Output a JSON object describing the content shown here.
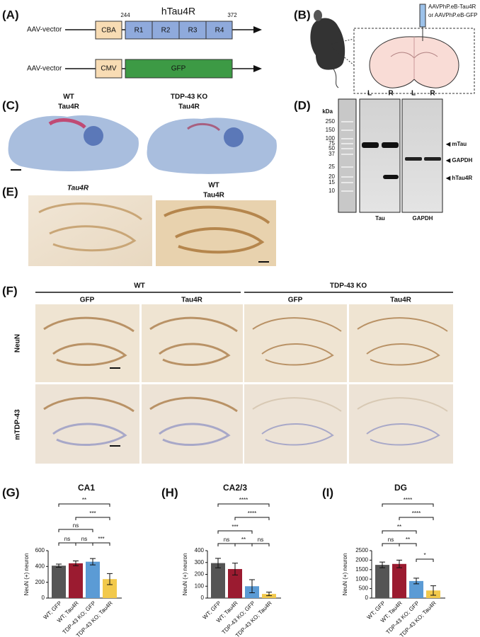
{
  "panel_a": {
    "label": "(A)",
    "constructs": [
      {
        "vector": "AAV-vector",
        "promoter": "CBA",
        "start": 244,
        "name": "hTau4R",
        "end": 372,
        "repeats": [
          "R1",
          "R2",
          "R3",
          "R4"
        ]
      },
      {
        "vector": "AAV-vector",
        "promoter": "CMV",
        "insert": "GFP"
      }
    ]
  },
  "panel_b": {
    "label": "(B)",
    "injection": [
      "AAVPhP.eB-Tau4R",
      "or AAVPhP.eB-GFP"
    ]
  },
  "panel_c": {
    "label": "(C)",
    "images": [
      {
        "title": [
          "WT",
          "Tau4R"
        ]
      },
      {
        "title": [
          "TDP-43 KO",
          "Tau4R"
        ]
      }
    ]
  },
  "panel_d": {
    "label": "(D)",
    "unit": "kDa",
    "ladder": [
      250,
      150,
      100,
      75,
      50,
      37,
      25,
      20,
      15,
      10
    ],
    "lanes": [
      "L",
      "R",
      "L",
      "R"
    ],
    "bands": [
      "mTau",
      "GAPDH",
      "hTau4R"
    ],
    "blots": [
      "Tau",
      "GAPDH"
    ]
  },
  "panel_e": {
    "label": "(E)",
    "images": [
      {
        "title": [
          "Tau4R"
        ]
      },
      {
        "title": [
          "WT",
          "Tau4R"
        ]
      }
    ]
  },
  "panel_f": {
    "label": "(F)",
    "groups": [
      "WT",
      "TDP-43 KO"
    ],
    "columns": [
      "GFP",
      "Tau4R",
      "GFP",
      "Tau4R"
    ],
    "rows": [
      "NeuN",
      "mTDP-43"
    ]
  },
  "chart_data": [
    {
      "type": "bar",
      "label": "(G)",
      "title": "CA1",
      "y_label": "NeuN (+) neuron",
      "categories": [
        "WT; GFP",
        "WT; Tau4R",
        "TDP-43 KO; GFP",
        "TDP-43 KO; Tau4R"
      ],
      "values": [
        410,
        440,
        460,
        240
      ],
      "errors": [
        20,
        30,
        40,
        70
      ],
      "colors": [
        "#555555",
        "#9b1b30",
        "#5b9bd5",
        "#f2c94c"
      ],
      "ylim": [
        0,
        600
      ],
      "yticks": [
        0,
        200,
        400,
        600
      ],
      "significance": [
        "**",
        "***",
        "ns",
        "ns",
        "ns",
        "***"
      ]
    },
    {
      "type": "bar",
      "label": "(H)",
      "title": "CA2/3",
      "y_label": "NeuN (+) neuron",
      "categories": [
        "WT; GFP",
        "WT; Tau4R",
        "TDP-43 KO; GFP",
        "TDP-43 KO; Tau4R"
      ],
      "values": [
        295,
        245,
        100,
        35
      ],
      "errors": [
        40,
        50,
        55,
        15
      ],
      "colors": [
        "#555555",
        "#9b1b30",
        "#5b9bd5",
        "#f2c94c"
      ],
      "ylim": [
        0,
        400
      ],
      "yticks": [
        0,
        100,
        200,
        300,
        400
      ],
      "significance": [
        "****",
        "****",
        "***",
        "ns",
        "**",
        "ns"
      ]
    },
    {
      "type": "bar",
      "label": "(I)",
      "title": "DG",
      "y_label": "NeuN (+) neuron",
      "categories": [
        "WT; GFP",
        "WT; Tau4R",
        "TDP-43 KO; GFP",
        "TDP-43 KO; Tau4R"
      ],
      "values": [
        1750,
        1800,
        900,
        400
      ],
      "errors": [
        150,
        200,
        150,
        250
      ],
      "colors": [
        "#555555",
        "#9b1b30",
        "#5b9bd5",
        "#f2c94c"
      ],
      "ylim": [
        0,
        2500
      ],
      "yticks": [
        0,
        500,
        1000,
        1500,
        2000,
        2500
      ],
      "significance": [
        "****",
        "****",
        "**",
        "ns",
        "**",
        "*"
      ]
    }
  ]
}
